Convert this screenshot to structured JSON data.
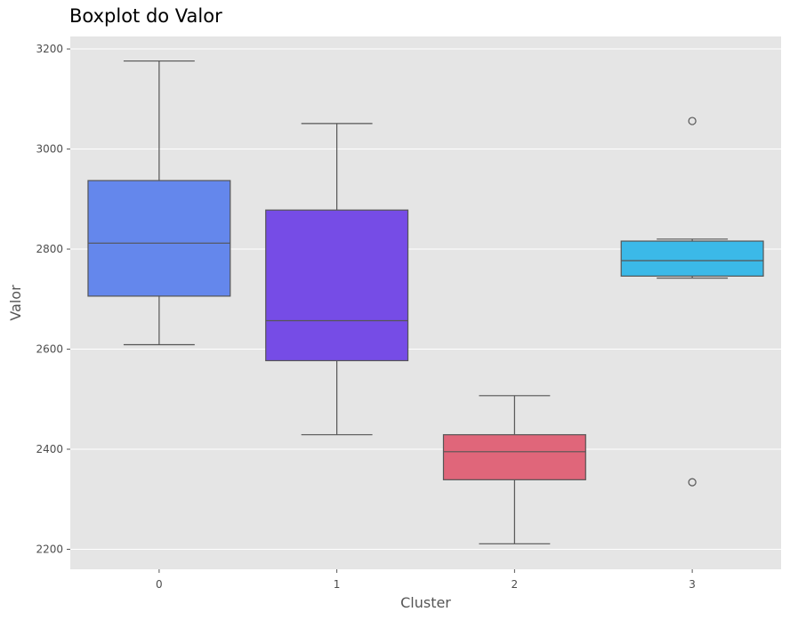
{
  "chart_data": {
    "type": "boxplot",
    "title": "Boxplot do Valor",
    "xlabel": "Cluster",
    "ylabel": "Valor",
    "categories": [
      "0",
      "1",
      "2",
      "3"
    ],
    "ylim": [
      2160,
      3225
    ],
    "yticks": [
      2200,
      2400,
      2600,
      2800,
      3000,
      3200
    ],
    "grid": true,
    "legend": "none",
    "boxes": [
      {
        "category": "0",
        "whisker_low": 2609,
        "q1": 2706,
        "median": 2812,
        "q3": 2937,
        "whisker_high": 3176,
        "outliers": [],
        "color": "#6487ec"
      },
      {
        "category": "1",
        "whisker_low": 2429,
        "q1": 2577,
        "median": 2657,
        "q3": 2878,
        "whisker_high": 3051,
        "outliers": [],
        "color": "#764ce6"
      },
      {
        "category": "2",
        "whisker_low": 2211,
        "q1": 2339,
        "median": 2395,
        "q3": 2429,
        "whisker_high": 2507,
        "outliers": [],
        "color": "#e0667a"
      },
      {
        "category": "3",
        "whisker_low": 2742,
        "q1": 2746,
        "median": 2777,
        "q3": 2816,
        "whisker_high": 2820,
        "outliers": [
          3056,
          2334
        ],
        "color": "#3bb9e8"
      }
    ],
    "colors": {
      "background": "#e5e5e5",
      "grid": "#ffffff",
      "line": "#555555"
    }
  }
}
